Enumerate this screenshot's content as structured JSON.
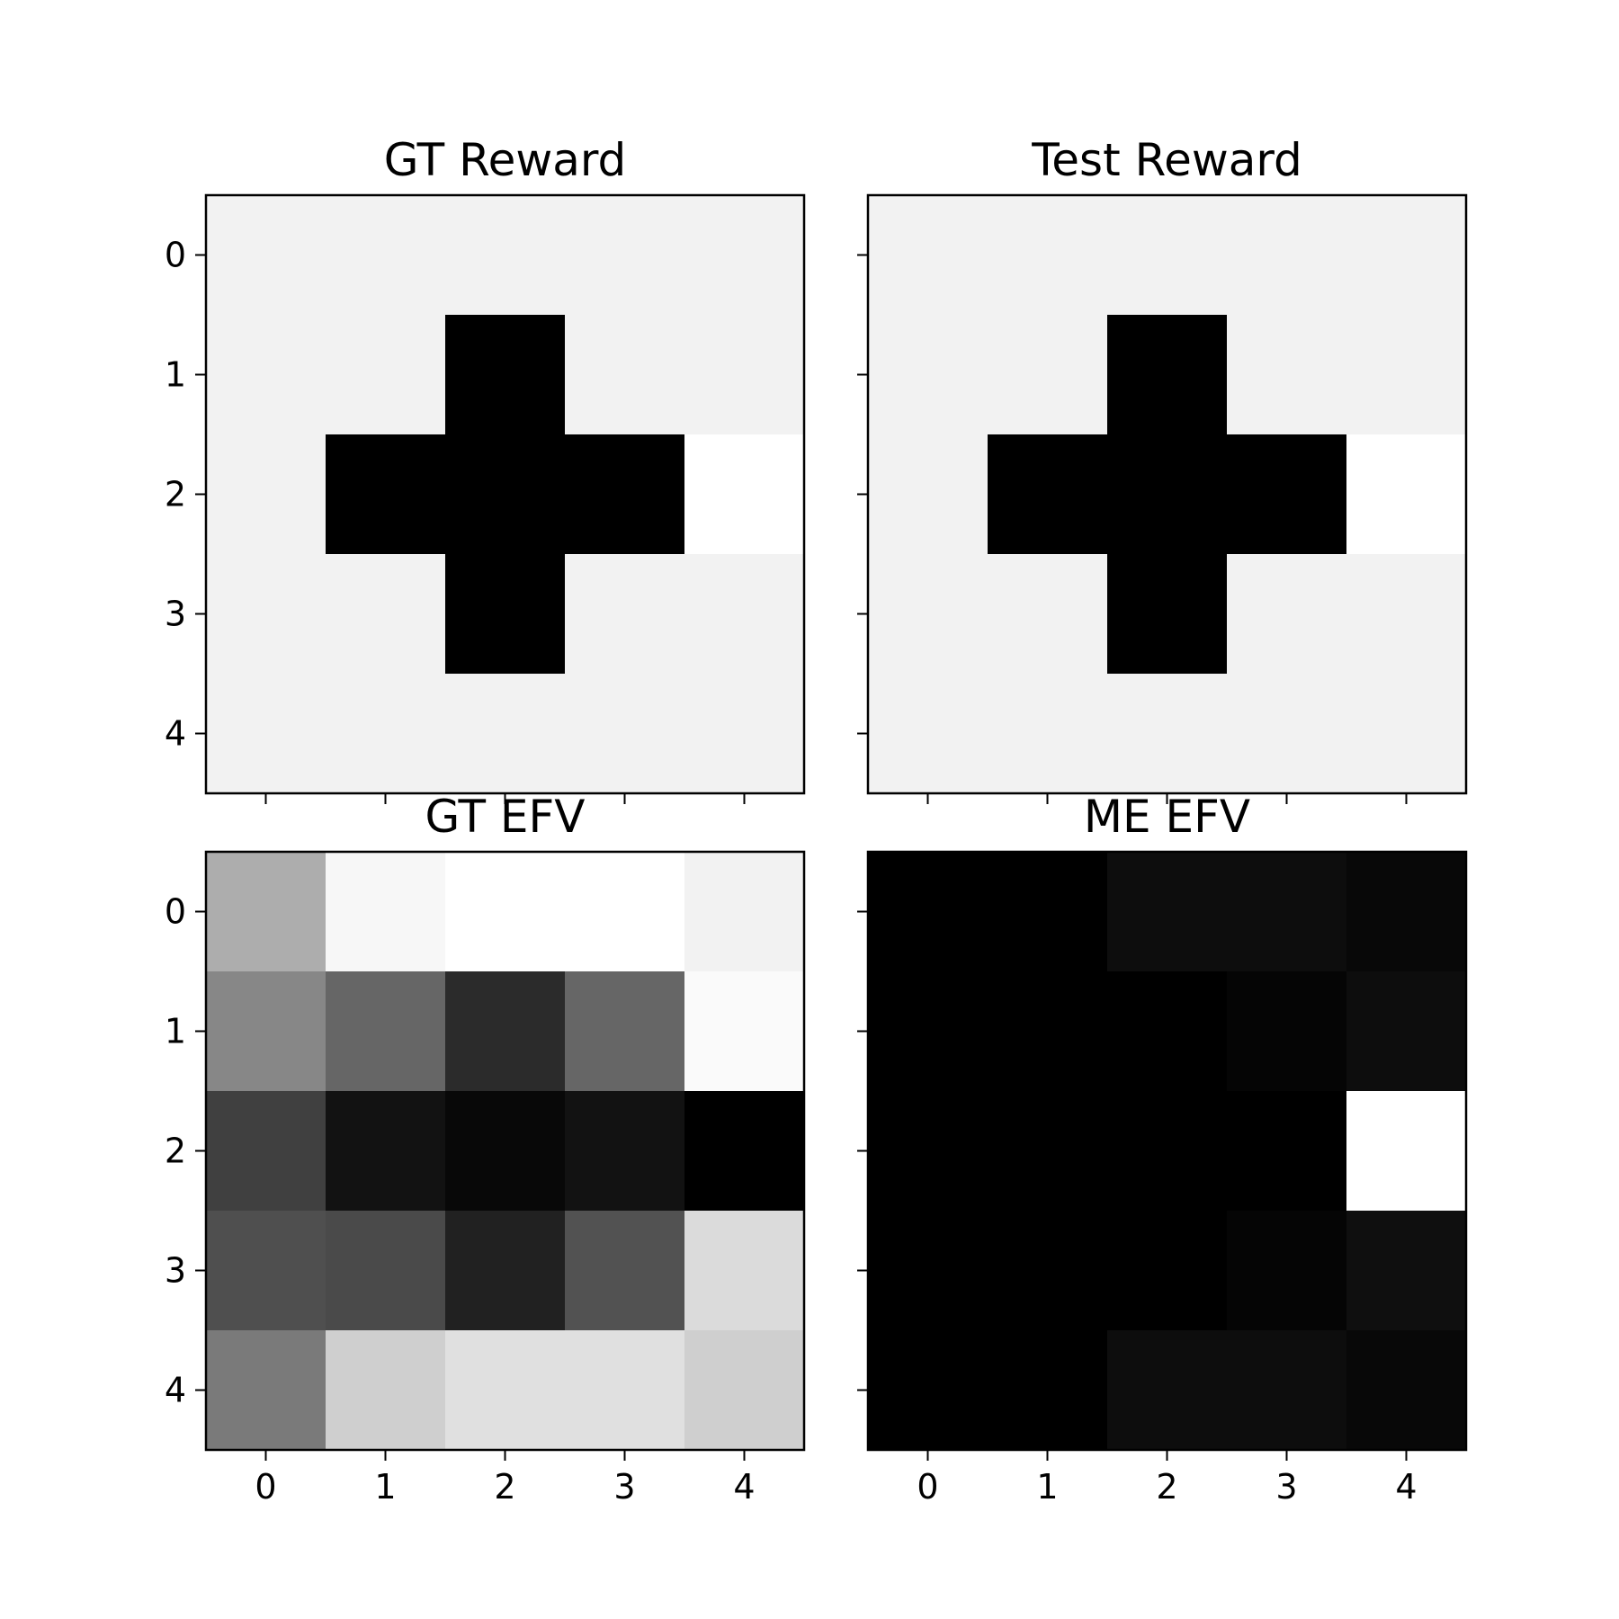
{
  "chart_data": [
    {
      "type": "heatmap",
      "title": "GT Reward",
      "colormap": "gray",
      "x_ticks": [
        "0",
        "1",
        "2",
        "3",
        "4"
      ],
      "y_ticks": [
        "0",
        "1",
        "2",
        "3",
        "4"
      ],
      "show_x_tick_labels": false,
      "show_y_tick_labels": true,
      "values": [
        [
          0.95,
          0.95,
          0.95,
          0.95,
          0.95
        ],
        [
          0.95,
          0.95,
          0.0,
          0.95,
          0.95
        ],
        [
          0.95,
          0.0,
          0.0,
          0.0,
          1.0
        ],
        [
          0.95,
          0.95,
          0.0,
          0.95,
          0.95
        ],
        [
          0.95,
          0.95,
          0.95,
          0.95,
          0.95
        ]
      ]
    },
    {
      "type": "heatmap",
      "title": "Test Reward",
      "colormap": "gray",
      "x_ticks": [
        "0",
        "1",
        "2",
        "3",
        "4"
      ],
      "y_ticks": [
        "0",
        "1",
        "2",
        "3",
        "4"
      ],
      "show_x_tick_labels": false,
      "show_y_tick_labels": false,
      "values": [
        [
          0.95,
          0.95,
          0.95,
          0.95,
          0.95
        ],
        [
          0.95,
          0.95,
          0.0,
          0.95,
          0.95
        ],
        [
          0.95,
          0.0,
          0.0,
          0.0,
          1.0
        ],
        [
          0.95,
          0.95,
          0.0,
          0.95,
          0.95
        ],
        [
          0.95,
          0.95,
          0.95,
          0.95,
          0.95
        ]
      ]
    },
    {
      "type": "heatmap",
      "title": "GT EFV",
      "colormap": "gray",
      "x_ticks": [
        "0",
        "1",
        "2",
        "3",
        "4"
      ],
      "y_ticks": [
        "0",
        "1",
        "2",
        "3",
        "4"
      ],
      "show_x_tick_labels": true,
      "show_y_tick_labels": true,
      "values": [
        [
          0.68,
          0.97,
          1.0,
          1.0,
          0.95
        ],
        [
          0.53,
          0.4,
          0.17,
          0.4,
          0.98
        ],
        [
          0.25,
          0.07,
          0.03,
          0.07,
          0.0
        ],
        [
          0.31,
          0.29,
          0.13,
          0.32,
          0.86
        ],
        [
          0.48,
          0.81,
          0.88,
          0.88,
          0.81
        ]
      ]
    },
    {
      "type": "heatmap",
      "title": "ME EFV",
      "colormap": "gray",
      "x_ticks": [
        "0",
        "1",
        "2",
        "3",
        "4"
      ],
      "y_ticks": [
        "0",
        "1",
        "2",
        "3",
        "4"
      ],
      "show_x_tick_labels": true,
      "show_y_tick_labels": false,
      "values": [
        [
          0.0,
          0.0,
          0.05,
          0.05,
          0.03
        ],
        [
          0.0,
          0.0,
          0.0,
          0.02,
          0.05
        ],
        [
          0.0,
          0.0,
          0.0,
          0.0,
          1.0
        ],
        [
          0.0,
          0.0,
          0.0,
          0.02,
          0.06
        ],
        [
          0.0,
          0.0,
          0.05,
          0.05,
          0.03
        ]
      ]
    }
  ]
}
